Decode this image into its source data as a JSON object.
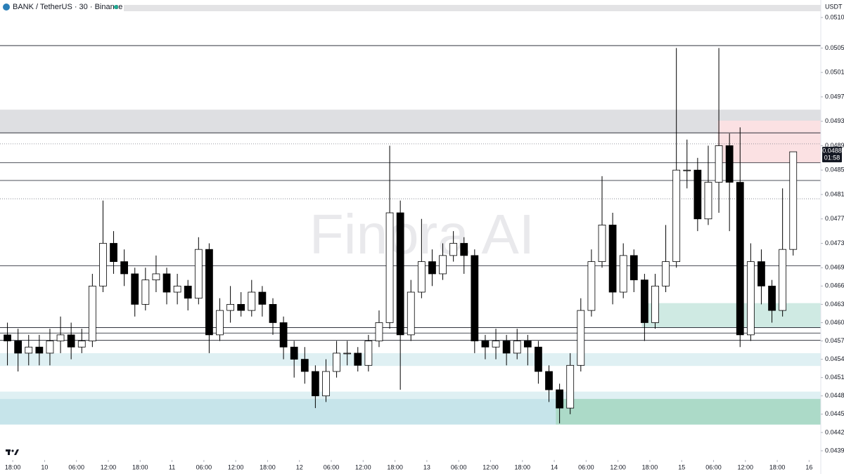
{
  "chart_data": {
    "type": "candlestick",
    "title": "BANK / TetherUS · 30 · Binance",
    "unit": "USDT",
    "watermark": "Finora AI",
    "x": [
      -1,
      1,
      3,
      5,
      7,
      9,
      11,
      13,
      15,
      17,
      19,
      21,
      23,
      25,
      27,
      29,
      31,
      33,
      35,
      37,
      39,
      41,
      43,
      45,
      47,
      49,
      51,
      53,
      55,
      57,
      59,
      61,
      63,
      65,
      67,
      69,
      71,
      73,
      75,
      77,
      79,
      81,
      83,
      85,
      87,
      89,
      91,
      93,
      95,
      97,
      99,
      101,
      103,
      105,
      107,
      109,
      111,
      113,
      115,
      117,
      119,
      121,
      123,
      125,
      127,
      129,
      131,
      133,
      135,
      137,
      139,
      141,
      143,
      145,
      147
    ],
    "open": [
      0.0458,
      0.0457,
      0.0455,
      0.0456,
      0.0455,
      0.0457,
      0.0458,
      0.0456,
      0.0457,
      0.0466,
      0.0473,
      0.047,
      0.0468,
      0.0463,
      0.0467,
      0.0468,
      0.0465,
      0.0466,
      0.0464,
      0.0472,
      0.0458,
      0.0462,
      0.0463,
      0.0462,
      0.0465,
      0.0463,
      0.046,
      0.0456,
      0.0454,
      0.0452,
      0.0448,
      0.0452,
      0.0455,
      0.0455,
      0.0453,
      0.0457,
      0.046,
      0.0478,
      0.0458,
      0.0465,
      0.047,
      0.0468,
      0.0471,
      0.0473,
      0.0471,
      0.0457,
      0.0456,
      0.0457,
      0.0455,
      0.0457,
      0.0456,
      0.0452,
      0.0449,
      0.0446,
      0.0453,
      0.0462,
      0.047,
      0.0476,
      0.0465,
      0.0471,
      0.0467,
      0.046,
      0.0466,
      0.047,
      0.0485,
      0.0485,
      0.0477,
      0.0483,
      0.0489,
      0.0483,
      0.0458,
      0.047,
      0.0466,
      0.0462,
      0.0472
    ],
    "high": [
      0.046,
      0.0459,
      0.0458,
      0.0458,
      0.0459,
      0.0461,
      0.046,
      0.0459,
      0.0468,
      0.048,
      0.0475,
      0.0472,
      0.0469,
      0.0469,
      0.0471,
      0.0469,
      0.0468,
      0.0467,
      0.0474,
      0.0473,
      0.0464,
      0.0466,
      0.0465,
      0.0467,
      0.0466,
      0.0464,
      0.0461,
      0.0457,
      0.0456,
      0.0453,
      0.0454,
      0.0457,
      0.0457,
      0.0456,
      0.0458,
      0.0462,
      0.0489,
      0.048,
      0.0467,
      0.0477,
      0.0472,
      0.0473,
      0.0475,
      0.0474,
      0.0472,
      0.0458,
      0.0459,
      0.0458,
      0.0459,
      0.0458,
      0.0457,
      0.0453,
      0.045,
      0.0455,
      0.0464,
      0.0472,
      0.0484,
      0.0478,
      0.0473,
      0.0472,
      0.0468,
      0.0468,
      0.0476,
      0.0505,
      0.049,
      0.0487,
      0.0489,
      0.0505,
      0.0491,
      0.0492,
      0.0473,
      0.0472,
      0.0467,
      0.0482,
      0.0488
    ],
    "low": [
      0.0453,
      0.0452,
      0.0453,
      0.0453,
      0.0453,
      0.0455,
      0.0454,
      0.0455,
      0.0456,
      0.0465,
      0.0468,
      0.0466,
      0.0461,
      0.0462,
      0.0465,
      0.0463,
      0.0463,
      0.0462,
      0.0463,
      0.0455,
      0.0457,
      0.046,
      0.0461,
      0.0461,
      0.0461,
      0.0458,
      0.0454,
      0.0451,
      0.045,
      0.0446,
      0.0447,
      0.0451,
      0.0453,
      0.0452,
      0.0452,
      0.0456,
      0.0459,
      0.0449,
      0.0457,
      0.0464,
      0.0466,
      0.0467,
      0.047,
      0.0468,
      0.0455,
      0.0454,
      0.0454,
      0.0453,
      0.0454,
      0.0453,
      0.045,
      0.0447,
      0.04435,
      0.0445,
      0.0452,
      0.0461,
      0.0469,
      0.0463,
      0.0464,
      0.0465,
      0.0457,
      0.0459,
      0.0465,
      0.0469,
      0.0482,
      0.0475,
      0.0476,
      0.0478,
      0.0475,
      0.0456,
      0.0457,
      0.0463,
      0.046,
      0.0461,
      0.0471
    ],
    "close": [
      0.0457,
      0.0455,
      0.0456,
      0.0455,
      0.0457,
      0.0458,
      0.0456,
      0.0457,
      0.0466,
      0.0473,
      0.047,
      0.0468,
      0.0463,
      0.0467,
      0.0468,
      0.0465,
      0.0466,
      0.0464,
      0.0472,
      0.0458,
      0.0462,
      0.0463,
      0.0462,
      0.0465,
      0.0463,
      0.046,
      0.0456,
      0.0454,
      0.0452,
      0.0448,
      0.0452,
      0.0455,
      0.0455,
      0.0453,
      0.0457,
      0.046,
      0.0478,
      0.0458,
      0.0465,
      0.047,
      0.0468,
      0.0471,
      0.0473,
      0.0471,
      0.0457,
      0.0456,
      0.0457,
      0.0455,
      0.0457,
      0.0456,
      0.0452,
      0.0449,
      0.0446,
      0.0453,
      0.0462,
      0.047,
      0.0476,
      0.0465,
      0.0471,
      0.0467,
      0.046,
      0.0466,
      0.047,
      0.0485,
      0.0485,
      0.0477,
      0.0483,
      0.0489,
      0.0483,
      0.0458,
      0.047,
      0.0466,
      0.0462,
      0.0472,
      0.0488
    ],
    "up_color": "#ffffff",
    "down_color": "#000000",
    "wick_color": "#000000",
    "xlim": [
      -2.4,
      152.2
    ],
    "xticks": [
      {
        "value": 0,
        "label": "18:00"
      },
      {
        "value": 6,
        "label": "10"
      },
      {
        "value": 12,
        "label": "06:00"
      },
      {
        "value": 18,
        "label": "12:00"
      },
      {
        "value": 24,
        "label": "18:00"
      },
      {
        "value": 30,
        "label": "11"
      },
      {
        "value": 36,
        "label": "06:00"
      },
      {
        "value": 42,
        "label": "12:00"
      },
      {
        "value": 48,
        "label": "18:00"
      },
      {
        "value": 54,
        "label": "12"
      },
      {
        "value": 60,
        "label": "06:00"
      },
      {
        "value": 66,
        "label": "12:00"
      },
      {
        "value": 72,
        "label": "18:00"
      },
      {
        "value": 78,
        "label": "13"
      },
      {
        "value": 84,
        "label": "06:00"
      },
      {
        "value": 90,
        "label": "12:00"
      },
      {
        "value": 96,
        "label": "18:00"
      },
      {
        "value": 102,
        "label": "14"
      },
      {
        "value": 108,
        "label": "06:00"
      },
      {
        "value": 114,
        "label": "12:00"
      },
      {
        "value": 120,
        "label": "18:00"
      },
      {
        "value": 126,
        "label": "15"
      },
      {
        "value": 132,
        "label": "06:00"
      },
      {
        "value": 138,
        "label": "12:00"
      },
      {
        "value": 144,
        "label": "18:00"
      },
      {
        "value": 150,
        "label": "16"
      }
    ],
    "ylim": [
      0.04375,
      0.05108
    ],
    "yticks": [
      {
        "value": 0.051,
        "label": "0.0510"
      },
      0.0505,
      0.0501,
      0.0497,
      0.0493,
      0.0489,
      0.0485,
      0.0481,
      0.0477,
      0.0473,
      0.0469,
      0.0466,
      0.0463,
      {
        "value": 0.046,
        "label": "0.0460"
      },
      0.0457,
      0.0454,
      0.0451,
      0.0448,
      0.0445,
      0.0442,
      0.0439
    ],
    "levels": [
      {
        "value": 0.05054,
        "style": "solid"
      },
      {
        "value": 0.04911,
        "style": "solid"
      },
      {
        "value": 0.04893,
        "style": "dotted"
      },
      {
        "value": 0.04862,
        "style": "solid"
      },
      {
        "value": 0.04833,
        "style": "solid"
      },
      {
        "value": 0.04803,
        "style": "dotted"
      },
      {
        "value": 0.04693,
        "style": "solid"
      },
      {
        "value": 0.04592,
        "style": "solid"
      },
      {
        "value": 0.04583,
        "style": "solid"
      },
      {
        "value": 0.04571,
        "style": "solid"
      }
    ],
    "zones": [
      {
        "low": 0.04911,
        "high": 0.04949,
        "color": "#dedfe2"
      },
      {
        "low": 0.04862,
        "high": 0.04931,
        "x_start": 132.8,
        "color": "#fbe1e3"
      },
      {
        "low": 0.04529,
        "high": 0.0455,
        "color": "#dff0f3"
      },
      {
        "low": 0.04475,
        "high": 0.04487,
        "color": "#dff0f3"
      },
      {
        "low": 0.04433,
        "high": 0.04475,
        "color": "#c6e4ea"
      },
      {
        "low": 0.04433,
        "high": 0.04475,
        "x_start": 102.3,
        "color": "#acdac8"
      },
      {
        "low": 0.04592,
        "high": 0.04632,
        "x_start": 118.5,
        "color": "#cfeae3"
      }
    ],
    "last_price": {
      "value": 0.0488,
      "countdown": "01:58"
    }
  }
}
